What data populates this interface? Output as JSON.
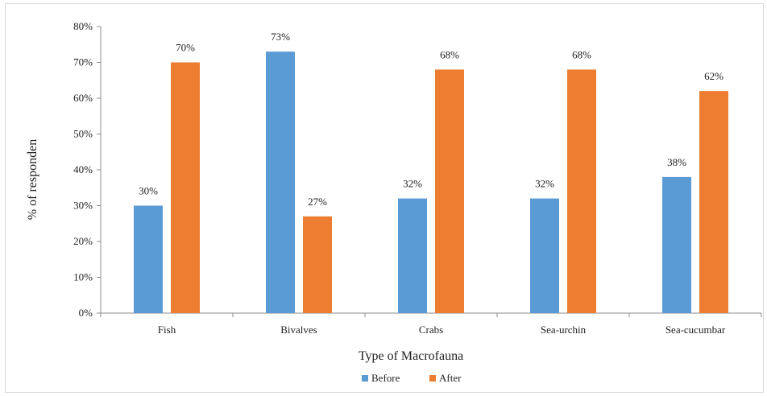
{
  "chart_data": {
    "type": "bar",
    "title": "",
    "xlabel": "Type of Macrofauna",
    "ylabel": "% of responden",
    "categories": [
      "Fish",
      "Bivalves",
      "Crabs",
      "Sea-urchin",
      "Sea-cucumbar"
    ],
    "series": [
      {
        "name": "Before",
        "values": [
          30,
          73,
          32,
          32,
          38
        ],
        "color": "#5b9bd5"
      },
      {
        "name": "After",
        "values": [
          70,
          27,
          68,
          68,
          62
        ],
        "color": "#ed7d31"
      }
    ],
    "value_labels": {
      "Before": [
        "30%",
        "73%",
        "32%",
        "32%",
        "38%"
      ],
      "After": [
        "70%",
        "27%",
        "68%",
        "68%",
        "62%"
      ]
    },
    "y_ticks": [
      "0%",
      "10%",
      "20%",
      "30%",
      "40%",
      "50%",
      "60%",
      "70%",
      "80%"
    ],
    "ylim": [
      0,
      80
    ],
    "grid": false,
    "legend_position": "bottom"
  }
}
